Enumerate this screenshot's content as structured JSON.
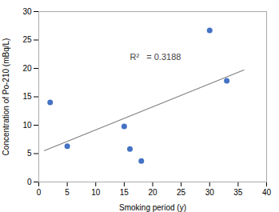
{
  "chart_data": {
    "type": "scatter",
    "x_label": "Smoking period (y)",
    "y_label": "Concentration of Po-210 (mBq/L)",
    "xlim": [
      0,
      40
    ],
    "ylim": [
      0,
      30
    ],
    "xticks": [
      0,
      5,
      10,
      15,
      20,
      25,
      30,
      35,
      40
    ],
    "yticks": [
      0,
      5,
      10,
      15,
      20,
      25,
      30
    ],
    "grid": false,
    "series": [
      {
        "type": "scatter",
        "color": "#4472C4",
        "x": [
          2,
          5,
          15,
          16,
          18,
          30,
          33
        ],
        "values": [
          14,
          6.3,
          9.8,
          5.8,
          3.7,
          26.7,
          17.8
        ]
      },
      {
        "type": "line",
        "color": "#808080",
        "x": [
          1,
          36
        ],
        "values": [
          5.522285714,
          19.723535714
        ]
      }
    ],
    "annotations": [
      {
        "text": "R²   = 0.3188",
        "x": 16,
        "y": 22
      }
    ]
  }
}
